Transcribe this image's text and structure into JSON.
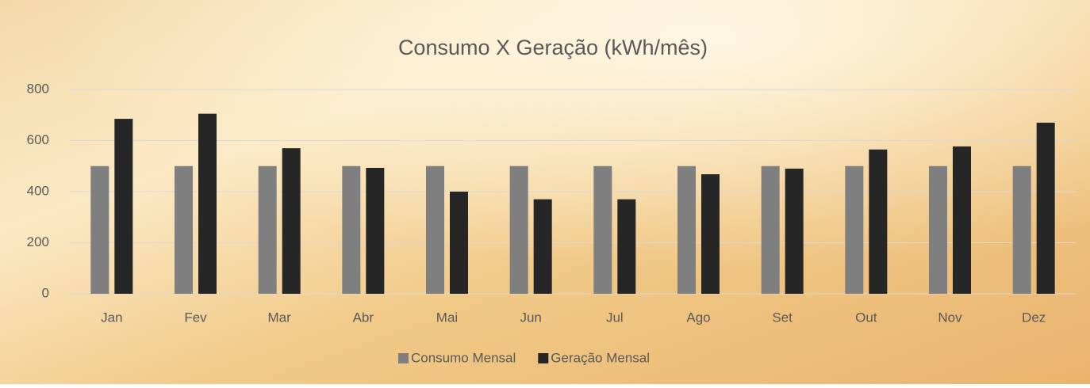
{
  "chart_data": {
    "type": "bar",
    "title": "Consumo X Geração (kWh/mês)",
    "categories": [
      "Jan",
      "Fev",
      "Mar",
      "Abr",
      "Mai",
      "Jun",
      "Jul",
      "Ago",
      "Set",
      "Out",
      "Nov",
      "Dez"
    ],
    "series": [
      {
        "name": "Consumo Mensal",
        "color": "#7f7f7f",
        "values": [
          500,
          500,
          500,
          500,
          500,
          500,
          500,
          500,
          500,
          500,
          500,
          500
        ]
      },
      {
        "name": "Geração Mensal",
        "color": "#262626",
        "values": [
          685,
          705,
          570,
          493,
          400,
          370,
          370,
          468,
          490,
          565,
          577,
          670
        ]
      }
    ],
    "ylim": [
      0,
      800
    ],
    "yticks": [
      0,
      200,
      400,
      600,
      800
    ],
    "grid": true,
    "legend": "bottom"
  }
}
